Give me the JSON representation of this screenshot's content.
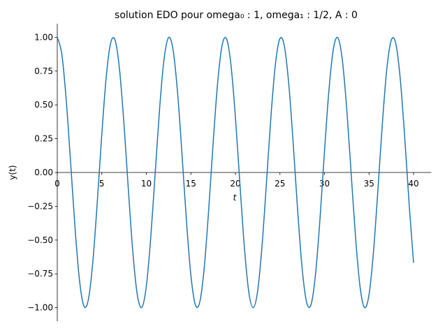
{
  "chart_data": {
    "type": "line",
    "title": "solution EDO pour omega₀ : 1, omega₁ : 1/2, A : 0",
    "x_label": "t",
    "y_label": "y(t)",
    "x": [
      0,
      0.5,
      1,
      1.5,
      2,
      2.5,
      3,
      3.5,
      4,
      4.5,
      5,
      5.5,
      6,
      6.5,
      7,
      7.5,
      8,
      8.5,
      9,
      9.5,
      10,
      10.5,
      11,
      11.5,
      12,
      12.5,
      13,
      13.5,
      14,
      14.5,
      15,
      15.5,
      16,
      16.5,
      17,
      17.5,
      18,
      18.5,
      19,
      19.5,
      20,
      20.5,
      21,
      21.5,
      22,
      22.5,
      23,
      23.5,
      24,
      24.5,
      25,
      25.5,
      26,
      26.5,
      27,
      27.5,
      28,
      28.5,
      29,
      29.5,
      30,
      30.5,
      31,
      31.5,
      32,
      32.5,
      33,
      33.5,
      34,
      34.5,
      35,
      35.5,
      36,
      36.5,
      37,
      37.5,
      38,
      38.5,
      39,
      39.5,
      40
    ],
    "series": [
      {
        "color": "#1f77b4",
        "values": [
          1,
          0.878,
          0.54,
          0.071,
          -0.416,
          -0.801,
          -0.99,
          -0.936,
          -0.654,
          -0.211,
          0.284,
          0.709,
          0.96,
          0.977,
          0.754,
          0.347,
          -0.146,
          -0.602,
          -0.911,
          -0.997,
          -0.839,
          -0.476,
          0.004,
          0.483,
          0.844,
          0.998,
          0.907,
          0.595,
          0.137,
          -0.355,
          -0.76,
          -0.978,
          -0.958,
          -0.703,
          -0.275,
          0.22,
          0.66,
          0.939,
          0.989,
          0.795,
          0.408,
          -0.079,
          -0.548,
          -0.883,
          -1,
          -0.874,
          -0.533,
          -0.062,
          0.424,
          0.806,
          0.991,
          0.933,
          0.647,
          0.202,
          -0.292,
          -0.715,
          -0.962,
          -0.975,
          -0.748,
          -0.339,
          0.154,
          0.609,
          0.915,
          0.996,
          0.834,
          0.468,
          -0.013,
          -0.491,
          -0.849,
          -0.999,
          -0.904,
          -0.588,
          -0.128,
          0.363,
          0.766,
          0.979,
          0.955,
          0.697,
          0.267,
          -0.228,
          -0.667
        ]
      }
    ],
    "xlim": [
      0,
      42
    ],
    "ylim": [
      -1.1,
      1.1
    ],
    "xticks": [
      0,
      5,
      10,
      15,
      20,
      25,
      30,
      35,
      40
    ],
    "yticks": [
      {
        "value": -1,
        "label": "−1.00"
      },
      {
        "value": -0.75,
        "label": "−0.75"
      },
      {
        "value": -0.5,
        "label": "−0.50"
      },
      {
        "value": -0.25,
        "label": "−0.25"
      },
      {
        "value": 0,
        "label": "0.00"
      },
      {
        "value": 0.25,
        "label": "0.25"
      },
      {
        "value": 0.5,
        "label": "0.50"
      },
      {
        "value": 0.75,
        "label": "0.75"
      },
      {
        "value": 1,
        "label": "1.00"
      }
    ]
  }
}
